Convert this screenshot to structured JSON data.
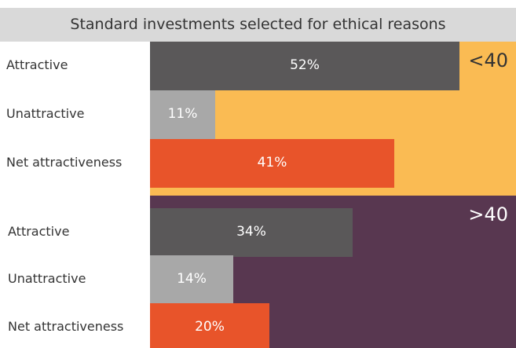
{
  "chart_data": {
    "type": "bar",
    "orientation": "horizontal",
    "title": "Standard investments selected for ethical reasons",
    "max": 100,
    "categories": [
      "Attractive",
      "Unattractive",
      "Net attractiveness"
    ],
    "colors": {
      "title_band": "#d9d9d9",
      "attractive": "#5a5859",
      "unattractive": "#a8a8a8",
      "net": "#e8542a"
    },
    "groups": [
      {
        "label": "<40",
        "background": "#fabb53",
        "label_color": "#333333",
        "series": [
          {
            "category": "Attractive",
            "value": 52,
            "label": "52%"
          },
          {
            "category": "Unattractive",
            "value": 11,
            "label": "11%"
          },
          {
            "category": "Net attractiveness",
            "value": 41,
            "label": "41%"
          }
        ]
      },
      {
        "label": ">40",
        "background": "#583750",
        "label_color": "#ffffff",
        "series": [
          {
            "category": "Attractive",
            "value": 34,
            "label": "34%"
          },
          {
            "category": "Unattractive",
            "value": 14,
            "label": "14%"
          },
          {
            "category": "Net attractiveness",
            "value": 20,
            "label": "20%"
          }
        ]
      }
    ]
  }
}
